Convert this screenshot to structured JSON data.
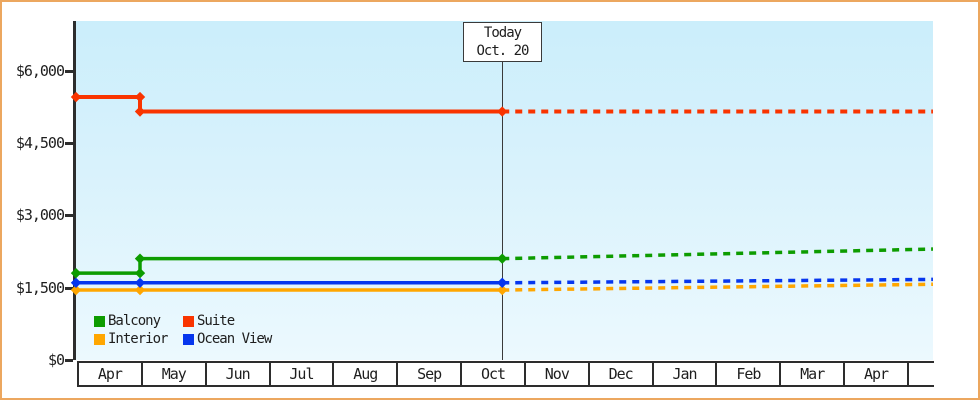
{
  "colors": {
    "frame_border": "#eca75f",
    "axis": "#2d2d2d",
    "text": "#1e1e1e",
    "plot_bg_top": "#cbeefb",
    "plot_bg_bottom": "#ecf9fe",
    "suite": "#f93400",
    "balcony": "#0d9c00",
    "ocean_view": "#0636ee",
    "interior": "#ffa600"
  },
  "today_marker": {
    "line1": "Today",
    "line2": "Oct. 20"
  },
  "y_axis": {
    "tick_labels": [
      "$0",
      "$1,500",
      "$3,000",
      "$4,500",
      "$6,000"
    ],
    "tick_values": [
      0,
      1500,
      3000,
      4500,
      6000
    ]
  },
  "x_axis": {
    "months": [
      "Apr",
      "May",
      "Jun",
      "Jul",
      "Aug",
      "Sep",
      "Oct",
      "Nov",
      "Dec",
      "Jan",
      "Feb",
      "Mar",
      "Apr"
    ]
  },
  "legend": {
    "items": [
      {
        "label": "Balcony",
        "color": "#0d9c00"
      },
      {
        "label": "Suite",
        "color": "#f93400"
      },
      {
        "label": "Interior",
        "color": "#ffa600"
      },
      {
        "label": "Ocean View",
        "color": "#0636ee"
      }
    ]
  },
  "chart_data": {
    "type": "line",
    "x_categories": [
      "Apr",
      "May",
      "Jun",
      "Jul",
      "Aug",
      "Sep",
      "Oct",
      "Nov",
      "Dec",
      "Jan",
      "Feb",
      "Mar",
      "Apr"
    ],
    "y_tick_labels": [
      "$0",
      "$1,500",
      "$3,000",
      "$4,500",
      "$6,000"
    ],
    "ylim": [
      0,
      7025
    ],
    "xlim_month_positions": [
      0,
      13.39
    ],
    "today_month_position": 6.66,
    "today_label": "Today Oct. 20",
    "legend_position": "bottom-left",
    "grid": false,
    "series": [
      {
        "name": "Interior",
        "color": "#ffa600",
        "stroke_width": 3.5,
        "history": [
          [
            0,
            1450
          ],
          [
            1,
            1450
          ],
          [
            6.66,
            1450
          ]
        ],
        "forecast": [
          [
            6.66,
            1450
          ],
          [
            13.39,
            1570
          ]
        ],
        "markers": [
          [
            0,
            1450
          ],
          [
            1,
            1450
          ],
          [
            6.66,
            1450
          ]
        ]
      },
      {
        "name": "Ocean View",
        "color": "#0636ee",
        "stroke_width": 3.5,
        "history": [
          [
            0,
            1600
          ],
          [
            1,
            1600
          ],
          [
            6.66,
            1600
          ]
        ],
        "forecast": [
          [
            6.66,
            1600
          ],
          [
            13.39,
            1670
          ]
        ],
        "markers": [
          [
            0,
            1600
          ],
          [
            1,
            1600
          ],
          [
            6.66,
            1600
          ]
        ]
      },
      {
        "name": "Balcony",
        "color": "#0d9c00",
        "stroke_width": 3.5,
        "history": [
          [
            0,
            1800
          ],
          [
            1,
            1800
          ],
          [
            1,
            2100
          ],
          [
            6.66,
            2100
          ]
        ],
        "forecast": [
          [
            6.66,
            2100
          ],
          [
            13.39,
            2300
          ]
        ],
        "markers": [
          [
            0,
            1800
          ],
          [
            1,
            1800
          ],
          [
            1,
            2100
          ],
          [
            6.66,
            2100
          ]
        ]
      },
      {
        "name": "Suite",
        "color": "#f93400",
        "stroke_width": 4,
        "history": [
          [
            0,
            5450
          ],
          [
            1,
            5450
          ],
          [
            1,
            5150
          ],
          [
            6.66,
            5150
          ]
        ],
        "forecast": [
          [
            6.66,
            5150
          ],
          [
            13.39,
            5150
          ]
        ],
        "markers": [
          [
            0,
            5450
          ],
          [
            1,
            5450
          ],
          [
            1,
            5150
          ],
          [
            6.66,
            5150
          ]
        ]
      }
    ]
  }
}
